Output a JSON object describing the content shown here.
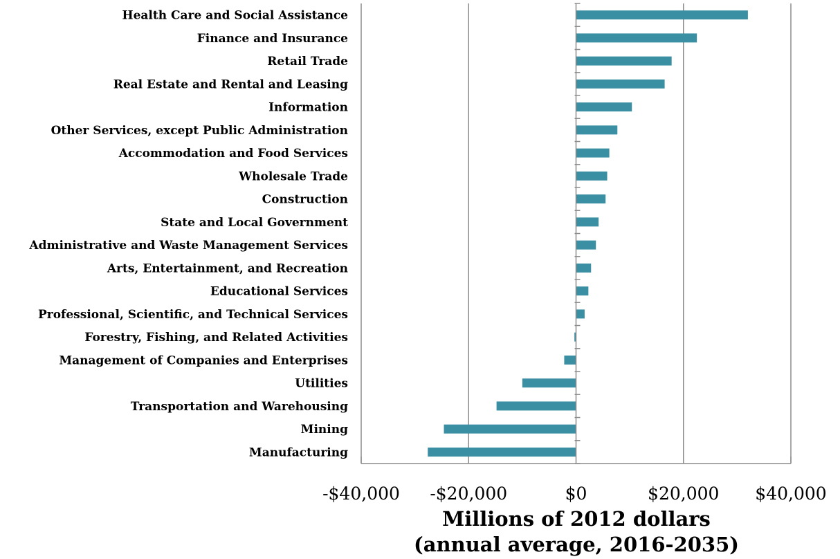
{
  "chart_data": {
    "type": "bar",
    "orientation": "horizontal",
    "categories": [
      "Health Care and Social Assistance",
      "Finance and Insurance",
      "Retail Trade",
      "Real Estate and Rental and Leasing",
      "Information",
      "Other Services, except Public Administration",
      "Accommodation and Food Services",
      "Wholesale Trade",
      "Construction",
      "State and Local Government",
      "Administrative and Waste Management Services",
      "Arts, Entertainment, and Recreation",
      "Educational Services",
      "Professional, Scientific, and Technical Services",
      "Forestry, Fishing, and Related Activities",
      "Management of Companies and Enterprises",
      "Utilities",
      "Transportation and Warehousing",
      "Mining",
      "Manufacturing"
    ],
    "values": [
      32000,
      22500,
      17800,
      16500,
      10400,
      7700,
      6200,
      5800,
      5500,
      4200,
      3700,
      2800,
      2300,
      1600,
      -300,
      -2200,
      -10000,
      -14800,
      -24600,
      -27600
    ],
    "xlim": [
      -40000,
      40000
    ],
    "xticks": [
      -40000,
      -20000,
      0,
      20000,
      40000
    ],
    "xtick_labels": [
      "-$40,000",
      "-$20,000",
      "$0",
      "$20,000",
      "$40,000"
    ],
    "xlabel": [
      "Millions of 2012 dollars",
      "(annual average, 2016-2035)"
    ],
    "ylabel": "",
    "title": "",
    "grid": "vertical",
    "legend": "none",
    "bar_color": "#3a8fa3"
  }
}
